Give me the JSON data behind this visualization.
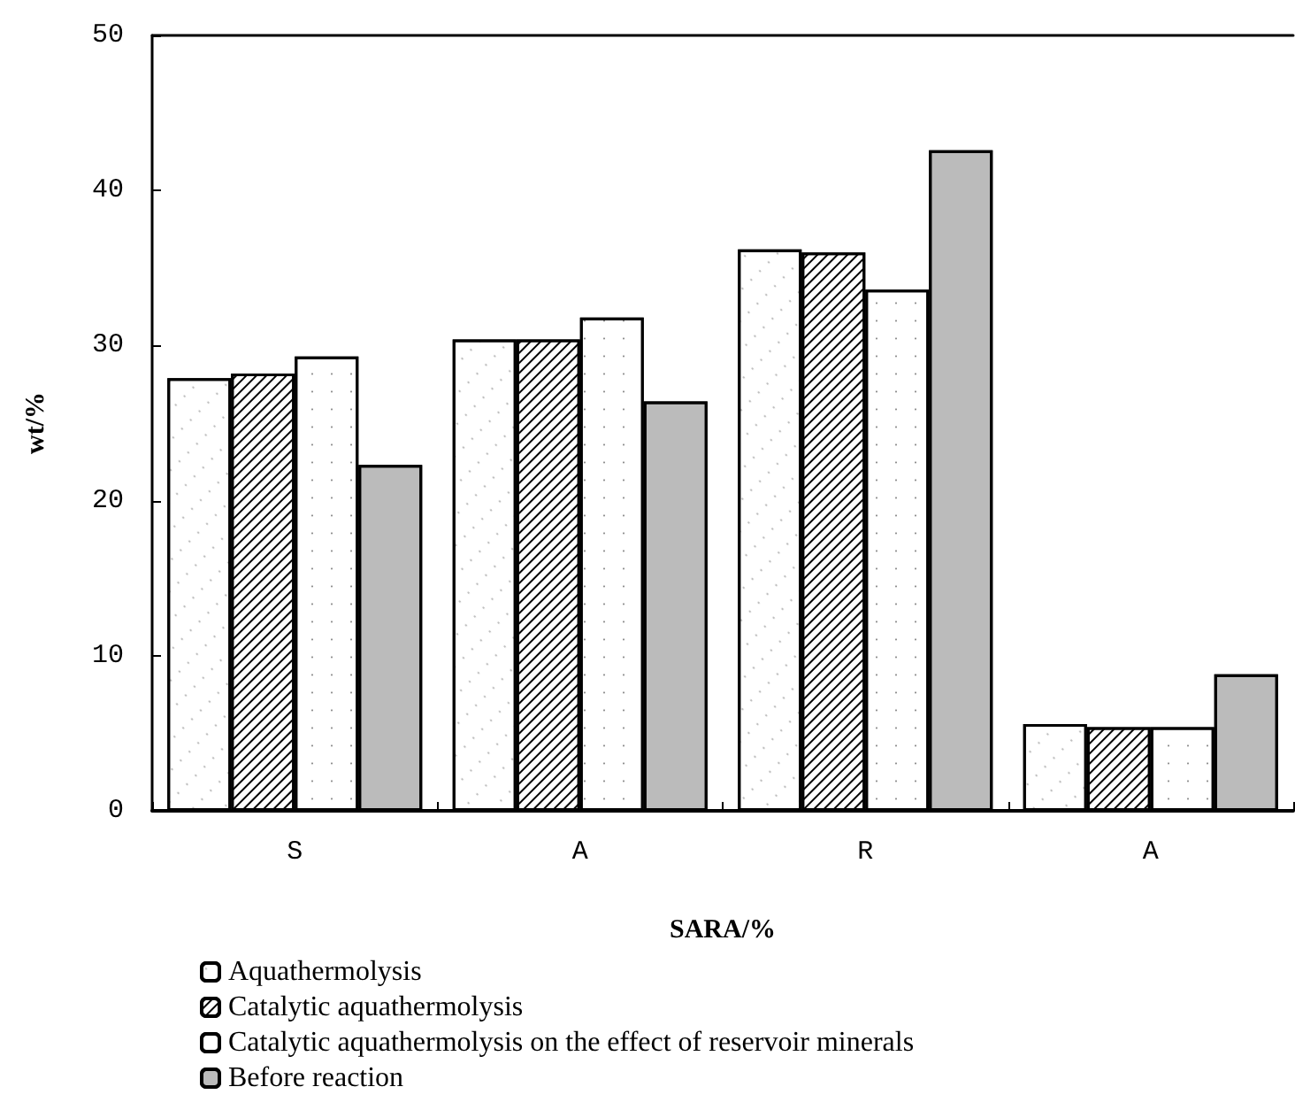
{
  "chart_data": {
    "type": "bar",
    "xlabel": "SARA/%",
    "ylabel": "wt/%",
    "categories": [
      "S",
      "A",
      "R",
      "A"
    ],
    "series": [
      {
        "name": "Aquathermolysis",
        "color": "#ffffff",
        "values": [
          27.9,
          30.4,
          36.2,
          5.6
        ]
      },
      {
        "name": "Catalytic aquathermolysis",
        "color": "#ffffff",
        "values": [
          28.2,
          30.4,
          36.0,
          5.4
        ]
      },
      {
        "name": "Catalytic aquathermolysis on the effect of reservoir minerals",
        "color": "#ffffff",
        "values": [
          29.3,
          31.8,
          33.6,
          5.4
        ]
      },
      {
        "name": "Before reaction",
        "color": "#bbbbbb",
        "values": [
          22.3,
          26.4,
          42.6,
          8.8
        ]
      }
    ],
    "ylim": [
      0,
      50
    ],
    "yticks": [
      0,
      10,
      20,
      30,
      40,
      50
    ],
    "grid": false,
    "legend": "bottom left"
  }
}
